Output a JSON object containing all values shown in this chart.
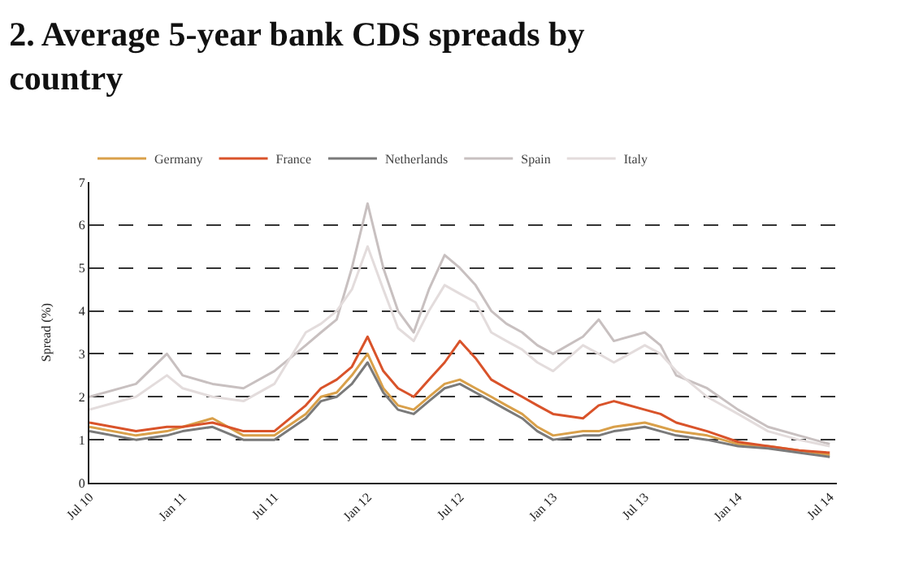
{
  "chart_data": {
    "type": "line",
    "title": "2. Average 5-year bank CDS spreads by country",
    "ylabel": "Spread (%)",
    "x": [
      "2010-07",
      "2010-10",
      "2010-12",
      "2011-01",
      "2011-03",
      "2011-05",
      "2011-07",
      "2011-09",
      "2011-10",
      "2011-11",
      "2011-12",
      "2012-01",
      "2012-02",
      "2012-03",
      "2012-04",
      "2012-05",
      "2012-06",
      "2012-07",
      "2012-08",
      "2012-09",
      "2012-10",
      "2012-11",
      "2012-12",
      "2013-01",
      "2013-03",
      "2013-04",
      "2013-05",
      "2013-07",
      "2013-08",
      "2013-09",
      "2013-11",
      "2014-01",
      "2014-03",
      "2014-05",
      "2014-07"
    ],
    "series": [
      {
        "name": "Germany",
        "color": "#d9a04a",
        "values": [
          1.3,
          1.1,
          1.2,
          1.3,
          1.5,
          1.1,
          1.1,
          1.6,
          2.0,
          2.1,
          2.5,
          3.0,
          2.2,
          1.8,
          1.7,
          2.0,
          2.3,
          2.4,
          2.2,
          2.0,
          1.8,
          1.6,
          1.3,
          1.1,
          1.2,
          1.2,
          1.3,
          1.4,
          1.3,
          1.2,
          1.1,
          0.9,
          0.85,
          0.75,
          0.65
        ]
      },
      {
        "name": "France",
        "color": "#d9532a",
        "values": [
          1.4,
          1.2,
          1.3,
          1.3,
          1.4,
          1.2,
          1.2,
          1.8,
          2.2,
          2.4,
          2.7,
          3.4,
          2.6,
          2.2,
          2.0,
          2.4,
          2.8,
          3.3,
          2.9,
          2.4,
          2.2,
          2.0,
          1.8,
          1.6,
          1.5,
          1.8,
          1.9,
          1.7,
          1.6,
          1.4,
          1.2,
          0.95,
          0.85,
          0.75,
          0.7
        ]
      },
      {
        "name": "Netherlands",
        "color": "#7a7a7a",
        "values": [
          1.2,
          1.0,
          1.1,
          1.2,
          1.3,
          1.0,
          1.0,
          1.5,
          1.9,
          2.0,
          2.3,
          2.8,
          2.1,
          1.7,
          1.6,
          1.9,
          2.2,
          2.3,
          2.1,
          1.9,
          1.7,
          1.5,
          1.2,
          1.0,
          1.1,
          1.1,
          1.2,
          1.3,
          1.2,
          1.1,
          1.0,
          0.85,
          0.8,
          0.7,
          0.6
        ]
      },
      {
        "name": "Spain",
        "color": "#c8c0c0",
        "values": [
          2.0,
          2.3,
          3.0,
          2.5,
          2.3,
          2.2,
          2.6,
          3.2,
          3.5,
          3.8,
          5.0,
          6.5,
          5.0,
          4.0,
          3.5,
          4.5,
          5.3,
          5.0,
          4.6,
          4.0,
          3.7,
          3.5,
          3.2,
          3.0,
          3.4,
          3.8,
          3.3,
          3.5,
          3.2,
          2.5,
          2.2,
          1.7,
          1.3,
          1.1,
          0.9
        ]
      },
      {
        "name": "Italy",
        "color": "#e3dcdc",
        "values": [
          1.7,
          2.0,
          2.5,
          2.2,
          2.0,
          1.9,
          2.3,
          3.5,
          3.7,
          4.0,
          4.5,
          5.5,
          4.5,
          3.6,
          3.3,
          4.0,
          4.6,
          4.4,
          4.2,
          3.5,
          3.3,
          3.1,
          2.8,
          2.6,
          3.2,
          3.0,
          2.8,
          3.2,
          3.0,
          2.6,
          2.0,
          1.6,
          1.2,
          1.0,
          0.85
        ]
      }
    ],
    "xlim": [
      "2010-07-01",
      "2014-07-15"
    ],
    "xticks": [
      {
        "value": "2010-07",
        "label": "Jul 10"
      },
      {
        "value": "2011-01",
        "label": "Jan 11"
      },
      {
        "value": "2011-07",
        "label": "Jul 11"
      },
      {
        "value": "2012-01",
        "label": "Jan 12"
      },
      {
        "value": "2012-07",
        "label": "Jul 12"
      },
      {
        "value": "2013-01",
        "label": "Jan 13"
      },
      {
        "value": "2013-07",
        "label": "Jul 13"
      },
      {
        "value": "2014-01",
        "label": "Jan 14"
      },
      {
        "value": "2014-07",
        "label": "Jul 14"
      }
    ],
    "ylim": [
      0,
      7
    ],
    "yticks": [
      0,
      1,
      2,
      3,
      4,
      5,
      6,
      7
    ],
    "grid": "y",
    "legend": "top",
    "marker": "none",
    "line_style": "solid"
  }
}
